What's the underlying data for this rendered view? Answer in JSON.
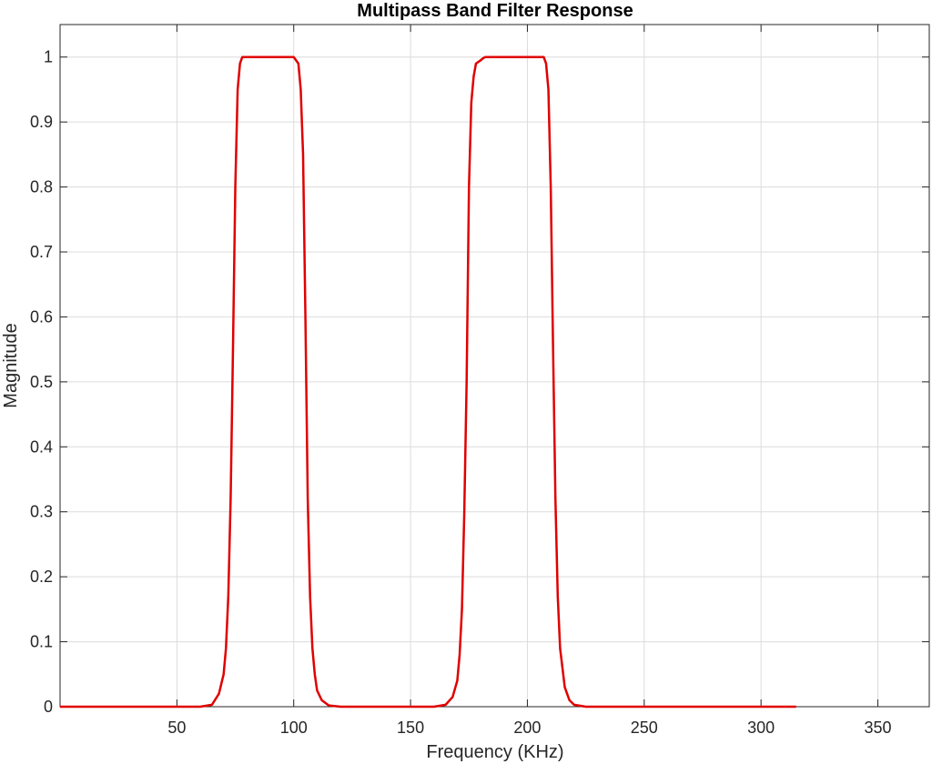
{
  "chart_data": {
    "type": "line",
    "title": "Multipass Band Filter Response",
    "xlabel": "Frequency (KHz)",
    "ylabel": "Magnitude",
    "xlim": [
      0,
      372
    ],
    "ylim": [
      0,
      1.05
    ],
    "x_ticks": [
      50,
      100,
      150,
      200,
      250,
      300,
      350
    ],
    "y_ticks": [
      0,
      0.1,
      0.2,
      0.3,
      0.4,
      0.5,
      0.6,
      0.7,
      0.8,
      0.9,
      1
    ],
    "x_tick_labels": [
      "50",
      "100",
      "150",
      "200",
      "250",
      "300",
      "350"
    ],
    "y_tick_labels": [
      "0",
      "0.1",
      "0.2",
      "0.3",
      "0.4",
      "0.5",
      "0.6",
      "0.7",
      "0.8",
      "0.9",
      "1"
    ],
    "grid": true,
    "line_color": "#e00000",
    "series": [
      {
        "x": [
          0,
          60,
          65,
          68,
          70,
          71,
          72,
          73,
          74,
          75,
          76,
          77,
          78,
          80,
          100,
          102,
          103,
          104,
          105,
          106,
          107,
          108,
          109,
          110,
          112,
          115,
          120,
          160,
          165,
          168,
          170,
          171,
          172,
          173,
          174,
          175,
          176,
          177,
          178,
          180,
          181,
          182,
          183,
          207,
          208,
          209,
          210,
          211,
          212,
          213,
          214,
          216,
          218,
          220,
          225,
          315
        ],
        "y": [
          0,
          0,
          0.003,
          0.02,
          0.05,
          0.09,
          0.17,
          0.32,
          0.55,
          0.8,
          0.95,
          0.99,
          1,
          1,
          1,
          0.99,
          0.95,
          0.85,
          0.6,
          0.32,
          0.17,
          0.09,
          0.05,
          0.025,
          0.01,
          0.002,
          0,
          0,
          0.003,
          0.015,
          0.04,
          0.08,
          0.15,
          0.3,
          0.5,
          0.8,
          0.93,
          0.97,
          0.99,
          0.995,
          0.998,
          1,
          1,
          1,
          0.99,
          0.95,
          0.8,
          0.55,
          0.32,
          0.17,
          0.09,
          0.03,
          0.01,
          0.003,
          0,
          0
        ]
      }
    ]
  }
}
